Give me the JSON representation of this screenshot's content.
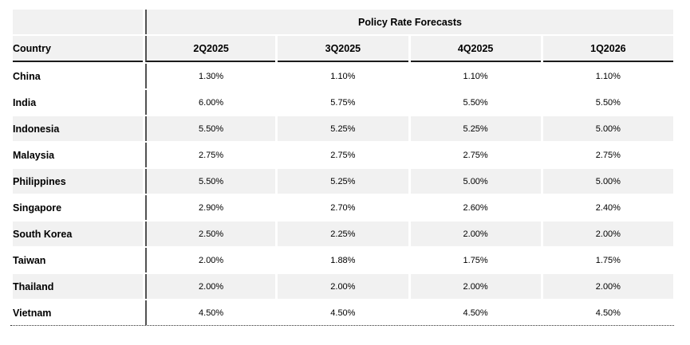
{
  "table": {
    "title": "Policy Rate Forecasts",
    "country_header": "Country",
    "quarters": [
      "2Q2025",
      "3Q2025",
      "4Q2025",
      "1Q2026"
    ],
    "rows": [
      {
        "country": "China",
        "values": [
          "1.30%",
          "1.10%",
          "1.10%",
          "1.10%"
        ]
      },
      {
        "country": "India",
        "values": [
          "6.00%",
          "5.75%",
          "5.50%",
          "5.50%"
        ]
      },
      {
        "country": "Indonesia",
        "values": [
          "5.50%",
          "5.25%",
          "5.25%",
          "5.00%"
        ]
      },
      {
        "country": "Malaysia",
        "values": [
          "2.75%",
          "2.75%",
          "2.75%",
          "2.75%"
        ]
      },
      {
        "country": "Philippines",
        "values": [
          "5.50%",
          "5.25%",
          "5.00%",
          "5.00%"
        ]
      },
      {
        "country": "Singapore",
        "values": [
          "2.90%",
          "2.70%",
          "2.60%",
          "2.40%"
        ]
      },
      {
        "country": "South Korea",
        "values": [
          "2.50%",
          "2.25%",
          "2.00%",
          "2.00%"
        ]
      },
      {
        "country": "Taiwan",
        "values": [
          "2.00%",
          "1.88%",
          "1.75%",
          "1.75%"
        ]
      },
      {
        "country": "Thailand",
        "values": [
          "2.00%",
          "2.00%",
          "2.00%",
          "2.00%"
        ]
      },
      {
        "country": "Vietnam",
        "values": [
          "4.50%",
          "4.50%",
          "4.50%",
          "4.50%"
        ]
      }
    ],
    "striped_row_indexes": [
      2,
      4,
      6,
      8
    ],
    "colors": {
      "stripe": "#F1F1F1",
      "divider": "#515151",
      "header_rule": "#1B1B1B",
      "dotted_rule": "#2E2E2E"
    }
  },
  "chart_data": {
    "type": "table",
    "title": "Policy Rate Forecasts",
    "columns": [
      "Country",
      "2Q2025",
      "3Q2025",
      "4Q2025",
      "1Q2026"
    ],
    "rows": [
      [
        "China",
        "1.30%",
        "1.10%",
        "1.10%",
        "1.10%"
      ],
      [
        "India",
        "6.00%",
        "5.75%",
        "5.50%",
        "5.50%"
      ],
      [
        "Indonesia",
        "5.50%",
        "5.25%",
        "5.25%",
        "5.00%"
      ],
      [
        "Malaysia",
        "2.75%",
        "2.75%",
        "2.75%",
        "2.75%"
      ],
      [
        "Philippines",
        "5.50%",
        "5.25%",
        "5.00%",
        "5.00%"
      ],
      [
        "Singapore",
        "2.90%",
        "2.70%",
        "2.60%",
        "2.40%"
      ],
      [
        "South Korea",
        "2.50%",
        "2.25%",
        "2.00%",
        "2.00%"
      ],
      [
        "Taiwan",
        "2.00%",
        "1.88%",
        "1.75%",
        "1.75%"
      ],
      [
        "Thailand",
        "2.00%",
        "2.00%",
        "2.00%",
        "2.00%"
      ],
      [
        "Vietnam",
        "4.50%",
        "4.50%",
        "4.50%",
        "4.50%"
      ]
    ],
    "values_numeric_percent": {
      "China": [
        1.3,
        1.1,
        1.1,
        1.1
      ],
      "India": [
        6.0,
        5.75,
        5.5,
        5.5
      ],
      "Indonesia": [
        5.5,
        5.25,
        5.25,
        5.0
      ],
      "Malaysia": [
        2.75,
        2.75,
        2.75,
        2.75
      ],
      "Philippines": [
        5.5,
        5.25,
        5.0,
        5.0
      ],
      "Singapore": [
        2.9,
        2.7,
        2.6,
        2.4
      ],
      "South Korea": [
        2.5,
        2.25,
        2.0,
        2.0
      ],
      "Taiwan": [
        2.0,
        1.88,
        1.75,
        1.75
      ],
      "Thailand": [
        2.0,
        2.0,
        2.0,
        2.0
      ],
      "Vietnam": [
        4.5,
        4.5,
        4.5,
        4.5
      ]
    }
  }
}
